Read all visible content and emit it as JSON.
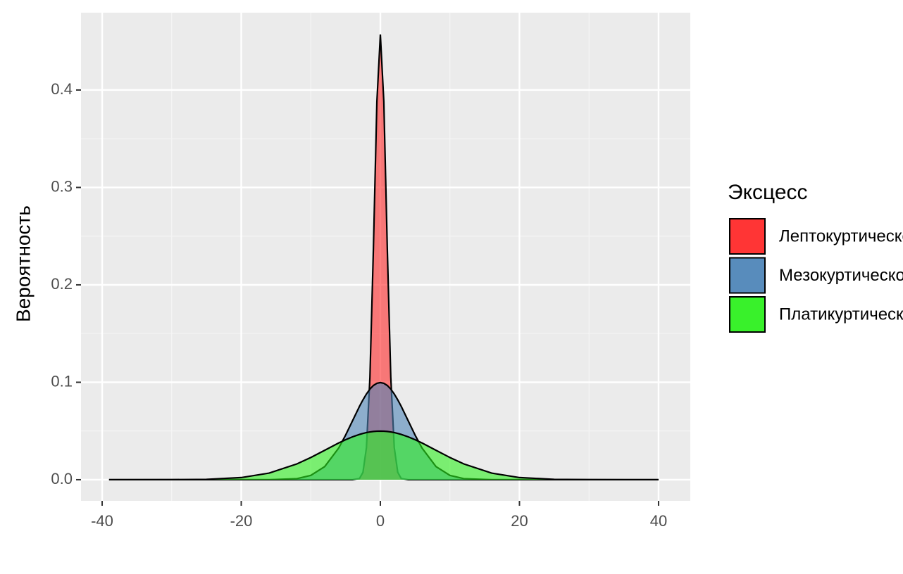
{
  "chart_data": {
    "type": "area",
    "y_label": "Вероятность",
    "legend_title": "Эксцесс",
    "legend_position": "right",
    "grid": true,
    "x": [
      -39,
      -30,
      -25,
      -20,
      -16,
      -12,
      -10,
      -8,
      -6,
      -5,
      -4,
      -3,
      -2.5,
      -2,
      -1.5,
      -1,
      -0.5,
      0,
      0.5,
      1,
      1.5,
      2,
      2.5,
      3,
      4,
      5,
      6,
      8,
      10,
      12,
      16,
      20,
      25,
      30,
      40
    ],
    "series": [
      {
        "name": "Лептокуртическое",
        "color": "#ff2a2a",
        "values": [
          0,
          0,
          0,
          0,
          0,
          0,
          0,
          0,
          0,
          0,
          0,
          0.0012,
          0.0076,
          0.033,
          0.105,
          0.237,
          0.388,
          0.457,
          0.388,
          0.237,
          0.105,
          0.033,
          0.0076,
          0.0012,
          0,
          0,
          0,
          0,
          0,
          0,
          0,
          0,
          0,
          0,
          0
        ]
      },
      {
        "name": "Мезокуртическое",
        "color": "#4f86b8",
        "values": [
          0,
          0,
          0,
          0,
          0,
          0.0011,
          0.0044,
          0.0135,
          0.0324,
          0.0457,
          0.0605,
          0.0753,
          0.082,
          0.088,
          0.093,
          0.0967,
          0.0989,
          0.0997,
          0.0989,
          0.0967,
          0.093,
          0.088,
          0.082,
          0.0753,
          0.0605,
          0.0457,
          0.0324,
          0.0135,
          0.0044,
          0.0011,
          0,
          0,
          0,
          0,
          0
        ]
      },
      {
        "name": "Платикуртическое",
        "color": "#2ef020",
        "values": [
          0,
          4e-05,
          0.00038,
          0.0022,
          0.0068,
          0.0162,
          0.0228,
          0.0302,
          0.0377,
          0.041,
          0.044,
          0.0465,
          0.0475,
          0.0484,
          0.049,
          0.0495,
          0.0498,
          0.0499,
          0.0498,
          0.0495,
          0.049,
          0.0484,
          0.0475,
          0.0465,
          0.044,
          0.041,
          0.0377,
          0.0302,
          0.0228,
          0.0162,
          0.0068,
          0.0022,
          0.00038,
          4e-05,
          0
        ]
      }
    ],
    "xlim": [
      -43.04,
      44.56
    ],
    "xticks": [
      -40,
      -20,
      0,
      20,
      40
    ],
    "ylim": [
      -0.0217,
      0.4794
    ],
    "yticks": [
      {
        "value": 0,
        "label": "0.0"
      },
      0.1,
      0.2,
      0.3,
      0.4
    ]
  }
}
